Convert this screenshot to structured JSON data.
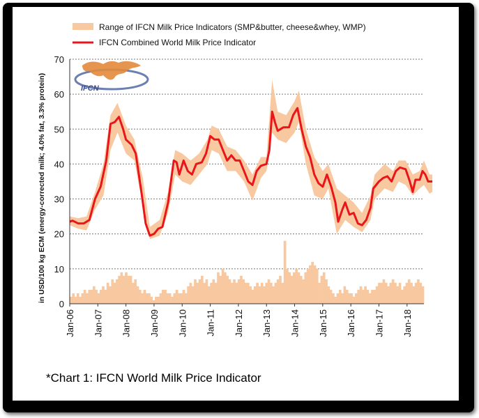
{
  "caption": "*Chart 1: IFCN World Milk Price Indicator",
  "logo_text": "IFCN",
  "colors": {
    "range": "#f8c9a0",
    "line": "#e8151a",
    "bars": "#f8c9a0"
  },
  "chart_data": {
    "type": "line",
    "title": "",
    "ylabel": "in USD/100 kg ECM (energy-corrected milk; 4.0% fat, 3.3% protein)",
    "ylim": [
      0,
      70
    ],
    "yticks": [
      0,
      10,
      20,
      30,
      40,
      50,
      60,
      70
    ],
    "xlim": [
      2006.0,
      2018.6
    ],
    "xticks": [
      "Jan-06",
      "Jan-07",
      "Jan-08",
      "Jan-09",
      "Jan-10",
      "Jan-11",
      "Jan-12",
      "Jan-13",
      "Jan-14",
      "Jan-15",
      "Jan-16",
      "Jan-17",
      "Jan-18"
    ],
    "legend": [
      "Range of IFCN Milk Price Indicators (SMP&butter, cheese&whey, WMP)",
      "IFCN Combined World Milk Price Indicator"
    ],
    "series": [
      {
        "name": "IFCN Combined World Milk Price Indicator",
        "points": [
          [
            2006.0,
            23.5
          ],
          [
            2006.1,
            23.8
          ],
          [
            2006.3,
            23.0
          ],
          [
            2006.5,
            23.0
          ],
          [
            2006.7,
            24.0
          ],
          [
            2006.9,
            30.0
          ],
          [
            2007.1,
            33.5
          ],
          [
            2007.3,
            41.0
          ],
          [
            2007.45,
            51.5
          ],
          [
            2007.6,
            52.0
          ],
          [
            2007.75,
            53.5
          ],
          [
            2007.9,
            50.0
          ],
          [
            2008.0,
            47.0
          ],
          [
            2008.2,
            45.5
          ],
          [
            2008.35,
            43.0
          ],
          [
            2008.55,
            32.0
          ],
          [
            2008.7,
            23.0
          ],
          [
            2008.85,
            19.5
          ],
          [
            2009.0,
            20.0
          ],
          [
            2009.15,
            21.5
          ],
          [
            2009.3,
            22.0
          ],
          [
            2009.5,
            29.0
          ],
          [
            2009.7,
            41.0
          ],
          [
            2009.8,
            40.5
          ],
          [
            2009.9,
            37.0
          ],
          [
            2010.05,
            41.0
          ],
          [
            2010.2,
            38.0
          ],
          [
            2010.35,
            37.0
          ],
          [
            2010.5,
            40.0
          ],
          [
            2010.7,
            40.5
          ],
          [
            2010.85,
            43.0
          ],
          [
            2011.0,
            48.0
          ],
          [
            2011.15,
            47.0
          ],
          [
            2011.3,
            47.0
          ],
          [
            2011.45,
            44.0
          ],
          [
            2011.6,
            41.0
          ],
          [
            2011.75,
            42.5
          ],
          [
            2011.9,
            41.0
          ],
          [
            2012.05,
            41.0
          ],
          [
            2012.2,
            38.0
          ],
          [
            2012.35,
            35.0
          ],
          [
            2012.5,
            34.0
          ],
          [
            2012.65,
            38.0
          ],
          [
            2012.8,
            39.5
          ],
          [
            2013.0,
            40.0
          ],
          [
            2013.1,
            44.0
          ],
          [
            2013.2,
            55.0
          ],
          [
            2013.3,
            52.0
          ],
          [
            2013.4,
            49.5
          ],
          [
            2013.6,
            50.5
          ],
          [
            2013.8,
            50.5
          ],
          [
            2013.95,
            54.0
          ],
          [
            2014.1,
            56.0
          ],
          [
            2014.25,
            50.0
          ],
          [
            2014.4,
            45.0
          ],
          [
            2014.55,
            42.0
          ],
          [
            2014.7,
            37.0
          ],
          [
            2014.85,
            34.5
          ],
          [
            2015.0,
            33.5
          ],
          [
            2015.15,
            37.0
          ],
          [
            2015.3,
            33.5
          ],
          [
            2015.45,
            29.0
          ],
          [
            2015.55,
            23.5
          ],
          [
            2015.7,
            27.0
          ],
          [
            2015.8,
            29.0
          ],
          [
            2015.95,
            25.5
          ],
          [
            2016.1,
            26.0
          ],
          [
            2016.25,
            23.0
          ],
          [
            2016.4,
            22.5
          ],
          [
            2016.55,
            24.0
          ],
          [
            2016.7,
            27.5
          ],
          [
            2016.8,
            33.0
          ],
          [
            2017.0,
            35.0
          ],
          [
            2017.15,
            36.0
          ],
          [
            2017.3,
            36.5
          ],
          [
            2017.45,
            35.0
          ],
          [
            2017.6,
            38.0
          ],
          [
            2017.75,
            39.0
          ],
          [
            2017.95,
            38.5
          ],
          [
            2018.1,
            35.0
          ],
          [
            2018.2,
            32.0
          ],
          [
            2018.3,
            35.5
          ],
          [
            2018.45,
            35.5
          ],
          [
            2018.55,
            38.0
          ],
          [
            2018.65,
            37.0
          ],
          [
            2018.75,
            35.0
          ],
          [
            2018.9,
            35.0
          ]
        ]
      },
      {
        "name": "Range of IFCN Milk Price Indicators (SMP&butter, cheese&whey, WMP)",
        "upper": [
          [
            2006.0,
            25.0
          ],
          [
            2006.3,
            24.5
          ],
          [
            2006.6,
            25.0
          ],
          [
            2006.9,
            32.0
          ],
          [
            2007.2,
            40.0
          ],
          [
            2007.45,
            54.0
          ],
          [
            2007.7,
            57.5
          ],
          [
            2008.0,
            51.0
          ],
          [
            2008.3,
            47.0
          ],
          [
            2008.6,
            36.0
          ],
          [
            2008.85,
            22.0
          ],
          [
            2009.2,
            24.0
          ],
          [
            2009.5,
            32.0
          ],
          [
            2009.75,
            44.0
          ],
          [
            2010.0,
            43.0
          ],
          [
            2010.3,
            41.0
          ],
          [
            2010.6,
            43.0
          ],
          [
            2010.9,
            47.0
          ],
          [
            2011.05,
            51.0
          ],
          [
            2011.3,
            50.0
          ],
          [
            2011.6,
            45.0
          ],
          [
            2011.9,
            44.0
          ],
          [
            2012.2,
            41.0
          ],
          [
            2012.5,
            37.0
          ],
          [
            2012.8,
            42.0
          ],
          [
            2013.0,
            42.0
          ],
          [
            2013.2,
            64.0
          ],
          [
            2013.4,
            55.0
          ],
          [
            2013.7,
            54.0
          ],
          [
            2014.0,
            58.0
          ],
          [
            2014.15,
            61.0
          ],
          [
            2014.4,
            50.0
          ],
          [
            2014.7,
            42.0
          ],
          [
            2015.0,
            38.0
          ],
          [
            2015.2,
            40.0
          ],
          [
            2015.5,
            33.0
          ],
          [
            2015.8,
            31.0
          ],
          [
            2016.1,
            29.0
          ],
          [
            2016.4,
            26.0
          ],
          [
            2016.7,
            31.0
          ],
          [
            2016.85,
            37.0
          ],
          [
            2017.2,
            40.0
          ],
          [
            2017.5,
            38.0
          ],
          [
            2017.7,
            41.0
          ],
          [
            2017.95,
            41.0
          ],
          [
            2018.2,
            37.0
          ],
          [
            2018.45,
            38.0
          ],
          [
            2018.6,
            41.0
          ],
          [
            2018.8,
            37.0
          ],
          [
            2018.9,
            37.0
          ]
        ],
        "lower": [
          [
            2006.0,
            22.5
          ],
          [
            2006.3,
            21.5
          ],
          [
            2006.6,
            21.0
          ],
          [
            2006.9,
            27.0
          ],
          [
            2007.2,
            31.0
          ],
          [
            2007.45,
            44.0
          ],
          [
            2007.7,
            49.0
          ],
          [
            2008.0,
            43.0
          ],
          [
            2008.3,
            41.0
          ],
          [
            2008.6,
            28.0
          ],
          [
            2008.85,
            18.5
          ],
          [
            2009.2,
            19.5
          ],
          [
            2009.5,
            26.0
          ],
          [
            2009.75,
            37.0
          ],
          [
            2010.0,
            35.0
          ],
          [
            2010.3,
            34.0
          ],
          [
            2010.6,
            37.0
          ],
          [
            2010.9,
            40.0
          ],
          [
            2011.05,
            44.0
          ],
          [
            2011.3,
            43.0
          ],
          [
            2011.6,
            38.0
          ],
          [
            2011.9,
            38.0
          ],
          [
            2012.2,
            35.0
          ],
          [
            2012.5,
            29.5
          ],
          [
            2012.8,
            36.0
          ],
          [
            2013.0,
            38.0
          ],
          [
            2013.2,
            49.0
          ],
          [
            2013.4,
            47.0
          ],
          [
            2013.7,
            46.0
          ],
          [
            2014.0,
            49.0
          ],
          [
            2014.15,
            52.0
          ],
          [
            2014.4,
            40.0
          ],
          [
            2014.7,
            31.0
          ],
          [
            2015.0,
            30.0
          ],
          [
            2015.2,
            33.0
          ],
          [
            2015.5,
            20.0
          ],
          [
            2015.8,
            24.0
          ],
          [
            2016.1,
            22.0
          ],
          [
            2016.4,
            20.5
          ],
          [
            2016.7,
            24.0
          ],
          [
            2016.85,
            30.0
          ],
          [
            2017.2,
            33.0
          ],
          [
            2017.5,
            32.0
          ],
          [
            2017.7,
            35.0
          ],
          [
            2017.95,
            34.0
          ],
          [
            2018.2,
            31.0
          ],
          [
            2018.45,
            33.0
          ],
          [
            2018.6,
            34.0
          ],
          [
            2018.8,
            31.5
          ],
          [
            2018.9,
            32.0
          ]
        ]
      },
      {
        "name": "Range width",
        "type": "bar",
        "values": [
          2,
          3,
          2,
          3,
          2,
          3,
          4,
          3,
          4,
          4,
          5,
          4,
          3,
          4,
          5,
          4,
          6,
          5,
          7,
          6,
          7,
          8,
          9,
          8,
          9,
          8,
          8,
          6,
          7,
          5,
          4,
          3,
          4,
          3,
          3,
          2,
          1,
          2,
          2,
          3,
          4,
          4,
          3,
          3,
          2,
          3,
          4,
          3,
          3,
          4,
          3,
          5,
          6,
          5,
          7,
          6,
          7,
          8,
          6,
          7,
          5,
          6,
          7,
          6,
          9,
          8,
          10,
          9,
          8,
          7,
          6,
          7,
          6,
          7,
          8,
          7,
          6,
          6,
          5,
          4,
          5,
          6,
          5,
          6,
          5,
          6,
          7,
          6,
          5,
          6,
          7,
          8,
          6,
          18,
          10,
          9,
          8,
          9,
          10,
          9,
          8,
          7,
          9,
          10,
          11,
          12,
          11,
          10,
          6,
          8,
          9,
          7,
          5,
          4,
          3,
          2,
          3,
          4,
          3,
          5,
          4,
          3,
          3,
          2,
          3,
          4,
          5,
          4,
          5,
          4,
          3,
          4,
          4,
          5,
          6,
          6,
          7,
          6,
          5,
          6,
          7,
          6,
          5,
          6,
          4,
          5,
          6,
          7,
          6,
          5,
          6,
          7,
          6,
          5
        ]
      }
    ]
  }
}
